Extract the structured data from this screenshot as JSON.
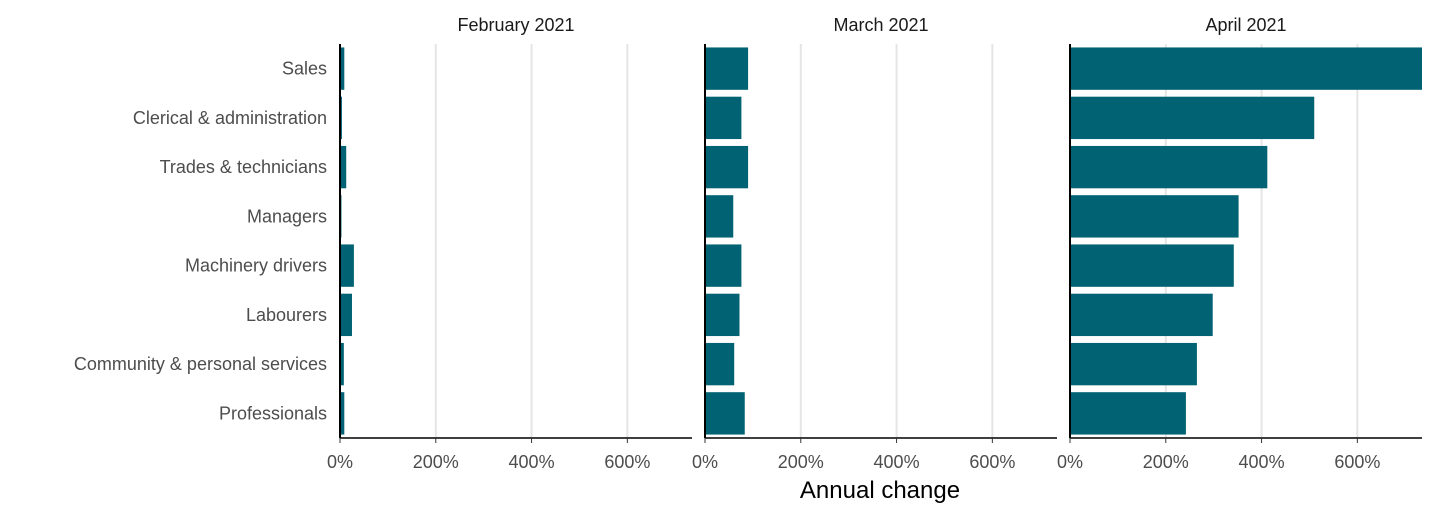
{
  "chart_data": {
    "type": "bar",
    "orientation": "horizontal",
    "xlabel": "Annual change",
    "xlim": [
      0,
      735
    ],
    "x_ticks": [
      0,
      200,
      400,
      600
    ],
    "x_tick_labels": [
      "0%",
      "200%",
      "400%",
      "600%"
    ],
    "grid": "vertical major gridlines",
    "bar_color": "#006272",
    "categories": [
      "Sales",
      "Clerical & administration",
      "Trades & technicians",
      "Managers",
      "Machinery drivers",
      "Labourers",
      "Community & personal services",
      "Professionals"
    ],
    "facets": [
      {
        "title": "February 2021",
        "values": [
          9,
          4,
          13,
          3,
          29,
          25,
          8,
          9
        ]
      },
      {
        "title": "March 2021",
        "values": [
          90,
          76,
          90,
          59,
          76,
          72,
          61,
          83
        ]
      },
      {
        "title": "April 2021",
        "values": [
          735,
          510,
          412,
          352,
          342,
          298,
          265,
          242
        ]
      }
    ]
  }
}
